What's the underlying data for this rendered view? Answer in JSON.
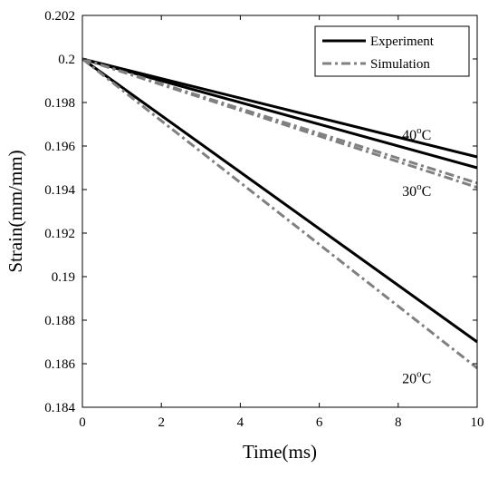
{
  "chart_data": {
    "type": "line",
    "xlabel": "Time(ms)",
    "ylabel": "Strain(mm/mm)",
    "xlim": [
      0,
      10
    ],
    "ylim": [
      0.184,
      0.202
    ],
    "xticks": [
      "0",
      "2",
      "4",
      "6",
      "8",
      "10"
    ],
    "yticks": [
      "0.184",
      "0.186",
      "0.188",
      "0.19",
      "0.192",
      "0.194",
      "0.196",
      "0.198",
      "0.2",
      "0.202"
    ],
    "grid": false,
    "legend_position": "top-right",
    "legend": [
      {
        "name": "Experiment",
        "style": "solid",
        "color": "#000000"
      },
      {
        "name": "Simulation",
        "style": "dashdot",
        "color": "#808080"
      }
    ],
    "series": [
      {
        "name": "Experiment",
        "group": "40oC",
        "style": "solid",
        "color": "#000000",
        "x": [
          0,
          10
        ],
        "y": [
          0.2,
          0.1955
        ]
      },
      {
        "name": "Experiment",
        "group": "30oC",
        "style": "solid",
        "color": "#000000",
        "x": [
          0,
          10
        ],
        "y": [
          0.2,
          0.195
        ]
      },
      {
        "name": "Experiment",
        "group": "20oC",
        "style": "solid",
        "color": "#000000",
        "x": [
          0,
          10
        ],
        "y": [
          0.2,
          0.187
        ]
      },
      {
        "name": "Simulation",
        "group": "40oC",
        "style": "dashdot",
        "color": "#808080",
        "x": [
          0,
          10
        ],
        "y": [
          0.2,
          0.1943
        ]
      },
      {
        "name": "Simulation",
        "group": "30oC",
        "style": "dashdot",
        "color": "#808080",
        "x": [
          0,
          10
        ],
        "y": [
          0.2,
          0.1941
        ]
      },
      {
        "name": "Simulation",
        "group": "20oC",
        "style": "dashdot",
        "color": "#808080",
        "x": [
          0,
          10
        ],
        "y": [
          0.2,
          0.1858
        ]
      }
    ],
    "annotations": [
      {
        "base": "40",
        "sup": "o",
        "unit": "C",
        "x": 8.1,
        "y": 0.1963
      },
      {
        "base": "30",
        "sup": "o",
        "unit": "C",
        "x": 8.1,
        "y": 0.1937
      },
      {
        "base": "20",
        "sup": "o",
        "unit": "C",
        "x": 8.1,
        "y": 0.1851
      }
    ]
  }
}
